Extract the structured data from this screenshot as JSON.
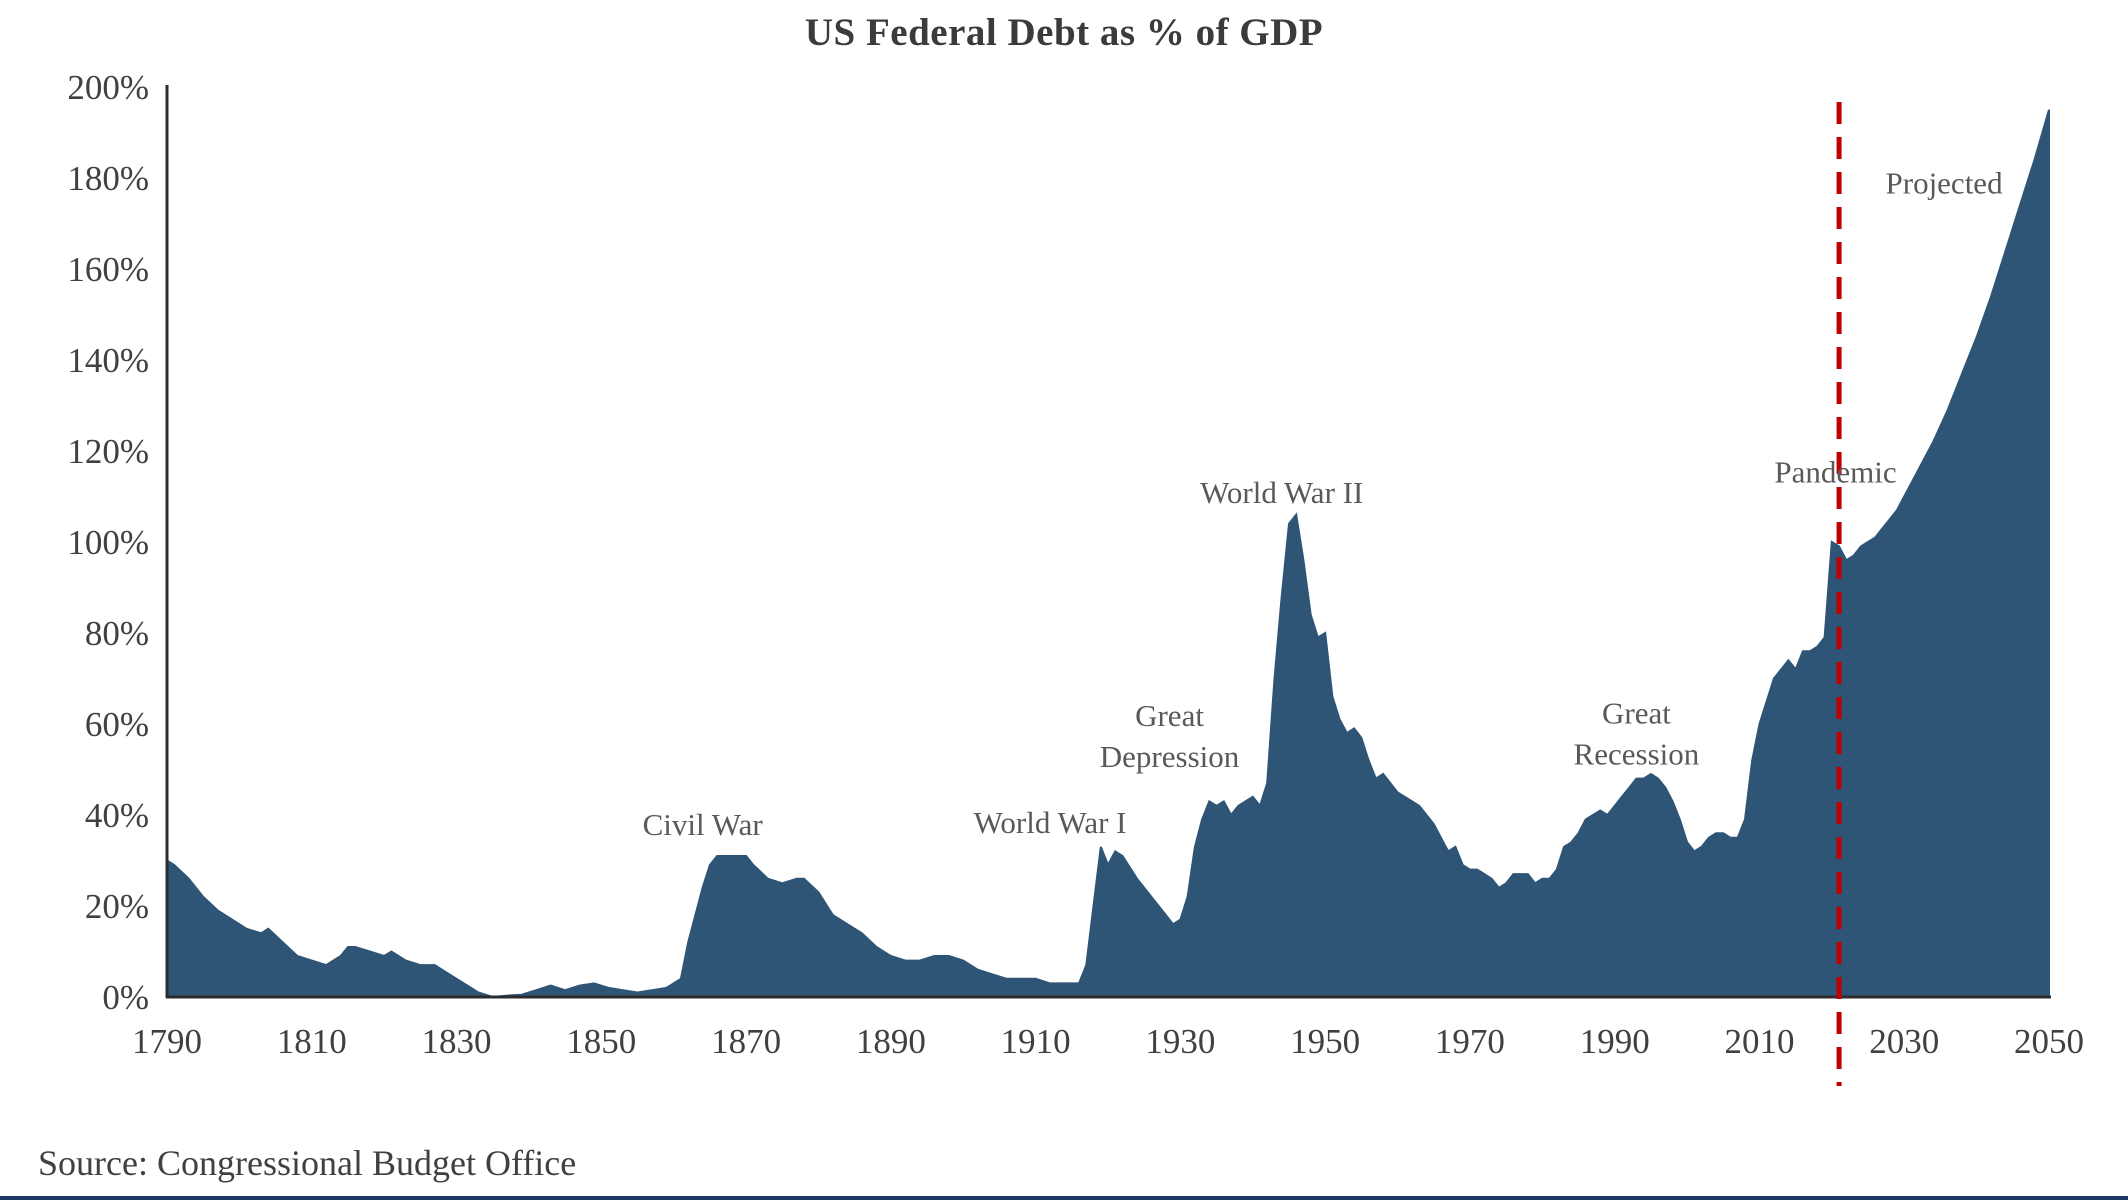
{
  "source": "Source: Congressional Budget Office",
  "chart_data": {
    "type": "area",
    "title": "US Federal Debt as % of GDP",
    "xlim": [
      1790,
      2050
    ],
    "ylim": [
      0,
      200
    ],
    "grid": false,
    "legend": "none",
    "colors": {
      "area": "#2E5476",
      "axis": "#2b2b2b",
      "tick_text": "#404040",
      "annotation_text": "#595959",
      "projection_line": "#C00000",
      "footer_rule": "#1F3864"
    },
    "x_ticks": [
      1790,
      1810,
      1830,
      1850,
      1870,
      1890,
      1910,
      1930,
      1950,
      1970,
      1990,
      2010,
      2030,
      2050
    ],
    "y_ticks": [
      {
        "value": 0,
        "label": "0%"
      },
      {
        "value": 20,
        "label": "20%"
      },
      {
        "value": 40,
        "label": "40%"
      },
      {
        "value": 60,
        "label": "60%"
      },
      {
        "value": 80,
        "label": "80%"
      },
      {
        "value": 100,
        "label": "100%"
      },
      {
        "value": 120,
        "label": "120%"
      },
      {
        "value": 140,
        "label": "140%"
      },
      {
        "value": 160,
        "label": "160%"
      },
      {
        "value": 180,
        "label": "180%"
      },
      {
        "value": 200,
        "label": "200%"
      }
    ],
    "projection_line": {
      "x": 2021
    },
    "annotations": [
      {
        "id": "civil-war",
        "lines": [
          "Civil War"
        ],
        "x": 1864,
        "y": 38
      },
      {
        "id": "world-war-1",
        "lines": [
          "World War I"
        ],
        "x": 1912,
        "y": 38.5
      },
      {
        "id": "great-depression",
        "lines": [
          "Great",
          "Depression"
        ],
        "x": 1928.5,
        "y": 57.5
      },
      {
        "id": "world-war-2",
        "lines": [
          "World War II"
        ],
        "x": 1944,
        "y": 111
      },
      {
        "id": "great-recession",
        "lines": [
          "Great",
          "Recession"
        ],
        "x": 1993,
        "y": 58
      },
      {
        "id": "pandemic",
        "lines": [
          "Pandemic"
        ],
        "x": 2020.5,
        "y": 115.5
      },
      {
        "id": "projected",
        "lines": [
          "Projected"
        ],
        "x": 2035.5,
        "y": 179
      }
    ],
    "points": [
      [
        1790,
        30
      ],
      [
        1791,
        29
      ],
      [
        1793,
        26
      ],
      [
        1795,
        22
      ],
      [
        1797,
        19
      ],
      [
        1799,
        17
      ],
      [
        1801,
        15
      ],
      [
        1803,
        14
      ],
      [
        1804,
        15
      ],
      [
        1806,
        12
      ],
      [
        1808,
        9
      ],
      [
        1810,
        8
      ],
      [
        1812,
        7
      ],
      [
        1814,
        9
      ],
      [
        1815,
        11
      ],
      [
        1816,
        11
      ],
      [
        1818,
        10
      ],
      [
        1820,
        9
      ],
      [
        1821,
        10
      ],
      [
        1823,
        8
      ],
      [
        1825,
        7
      ],
      [
        1827,
        7
      ],
      [
        1829,
        5
      ],
      [
        1831,
        3
      ],
      [
        1833,
        1
      ],
      [
        1835,
        0
      ],
      [
        1837,
        0.3
      ],
      [
        1839,
        0.5
      ],
      [
        1841,
        1.5
      ],
      [
        1843,
        2.5
      ],
      [
        1845,
        1.5
      ],
      [
        1847,
        2.5
      ],
      [
        1849,
        3
      ],
      [
        1851,
        2
      ],
      [
        1853,
        1.5
      ],
      [
        1855,
        1
      ],
      [
        1857,
        1.5
      ],
      [
        1859,
        2
      ],
      [
        1861,
        4
      ],
      [
        1862,
        12
      ],
      [
        1863,
        18
      ],
      [
        1864,
        24
      ],
      [
        1865,
        29
      ],
      [
        1866,
        31
      ],
      [
        1868,
        31
      ],
      [
        1870,
        31
      ],
      [
        1871,
        29
      ],
      [
        1873,
        26
      ],
      [
        1875,
        25
      ],
      [
        1877,
        26
      ],
      [
        1878,
        26
      ],
      [
        1880,
        23
      ],
      [
        1882,
        18
      ],
      [
        1884,
        16
      ],
      [
        1886,
        14
      ],
      [
        1888,
        11
      ],
      [
        1890,
        9
      ],
      [
        1892,
        8
      ],
      [
        1894,
        8
      ],
      [
        1896,
        9
      ],
      [
        1898,
        9
      ],
      [
        1900,
        8
      ],
      [
        1902,
        6
      ],
      [
        1904,
        5
      ],
      [
        1906,
        4
      ],
      [
        1908,
        4
      ],
      [
        1910,
        4
      ],
      [
        1912,
        3
      ],
      [
        1914,
        3
      ],
      [
        1916,
        3
      ],
      [
        1917,
        7
      ],
      [
        1918,
        20
      ],
      [
        1919,
        33
      ],
      [
        1920,
        29
      ],
      [
        1921,
        32
      ],
      [
        1922,
        31
      ],
      [
        1924,
        26
      ],
      [
        1926,
        22
      ],
      [
        1928,
        18
      ],
      [
        1929,
        16
      ],
      [
        1930,
        17
      ],
      [
        1931,
        22
      ],
      [
        1932,
        33
      ],
      [
        1933,
        39
      ],
      [
        1934,
        43
      ],
      [
        1935,
        42
      ],
      [
        1936,
        43
      ],
      [
        1937,
        40
      ],
      [
        1938,
        42
      ],
      [
        1939,
        43
      ],
      [
        1940,
        44
      ],
      [
        1941,
        42
      ],
      [
        1942,
        47
      ],
      [
        1943,
        70
      ],
      [
        1944,
        88
      ],
      [
        1945,
        104
      ],
      [
        1946,
        106
      ],
      [
        1947,
        96
      ],
      [
        1948,
        84
      ],
      [
        1949,
        79
      ],
      [
        1950,
        80
      ],
      [
        1951,
        66
      ],
      [
        1952,
        61
      ],
      [
        1953,
        58
      ],
      [
        1954,
        59
      ],
      [
        1955,
        57
      ],
      [
        1956,
        52
      ],
      [
        1957,
        48
      ],
      [
        1958,
        49
      ],
      [
        1959,
        47
      ],
      [
        1960,
        45
      ],
      [
        1961,
        44
      ],
      [
        1962,
        43
      ],
      [
        1963,
        42
      ],
      [
        1964,
        40
      ],
      [
        1965,
        38
      ],
      [
        1966,
        35
      ],
      [
        1967,
        32
      ],
      [
        1968,
        33
      ],
      [
        1969,
        29
      ],
      [
        1970,
        28
      ],
      [
        1971,
        28
      ],
      [
        1972,
        27
      ],
      [
        1973,
        26
      ],
      [
        1974,
        24
      ],
      [
        1975,
        25
      ],
      [
        1976,
        27
      ],
      [
        1977,
        27
      ],
      [
        1978,
        27
      ],
      [
        1979,
        25
      ],
      [
        1980,
        26
      ],
      [
        1981,
        26
      ],
      [
        1982,
        28
      ],
      [
        1983,
        33
      ],
      [
        1984,
        34
      ],
      [
        1985,
        36
      ],
      [
        1986,
        39
      ],
      [
        1987,
        40
      ],
      [
        1988,
        41
      ],
      [
        1989,
        40
      ],
      [
        1990,
        42
      ],
      [
        1991,
        44
      ],
      [
        1992,
        46
      ],
      [
        1993,
        48
      ],
      [
        1994,
        48
      ],
      [
        1995,
        49
      ],
      [
        1996,
        48
      ],
      [
        1997,
        46
      ],
      [
        1998,
        43
      ],
      [
        1999,
        39
      ],
      [
        2000,
        34
      ],
      [
        2001,
        32
      ],
      [
        2002,
        33
      ],
      [
        2003,
        35
      ],
      [
        2004,
        36
      ],
      [
        2005,
        36
      ],
      [
        2006,
        35
      ],
      [
        2007,
        35
      ],
      [
        2008,
        39
      ],
      [
        2009,
        52
      ],
      [
        2010,
        60
      ],
      [
        2011,
        65
      ],
      [
        2012,
        70
      ],
      [
        2013,
        72
      ],
      [
        2014,
        74
      ],
      [
        2015,
        72
      ],
      [
        2016,
        76
      ],
      [
        2017,
        76
      ],
      [
        2018,
        77
      ],
      [
        2019,
        79
      ],
      [
        2020,
        100
      ],
      [
        2021,
        99
      ],
      [
        2022,
        96
      ],
      [
        2023,
        97
      ],
      [
        2024,
        99
      ],
      [
        2025,
        100
      ],
      [
        2026,
        101
      ],
      [
        2027,
        103
      ],
      [
        2028,
        105
      ],
      [
        2029,
        107
      ],
      [
        2030,
        110
      ],
      [
        2032,
        116
      ],
      [
        2034,
        122
      ],
      [
        2036,
        129
      ],
      [
        2038,
        137
      ],
      [
        2040,
        145
      ],
      [
        2042,
        154
      ],
      [
        2044,
        164
      ],
      [
        2046,
        174
      ],
      [
        2048,
        184
      ],
      [
        2050,
        195
      ]
    ]
  }
}
